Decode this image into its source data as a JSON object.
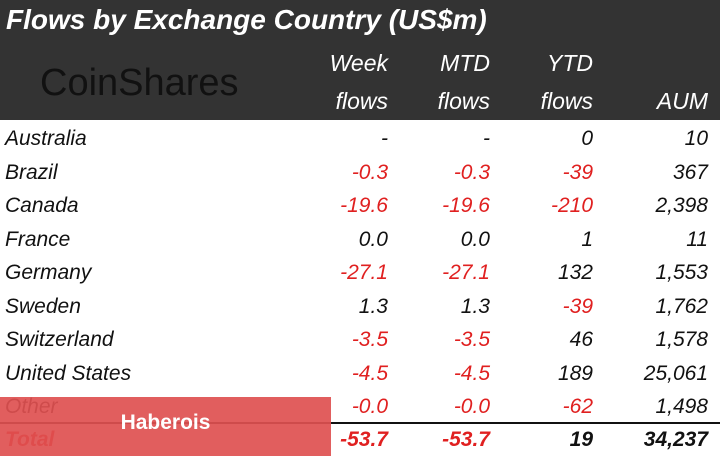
{
  "title": "Flows by Exchange Country (US$m)",
  "logo": "CoinShares",
  "table": {
    "header": [
      [
        "Week",
        "flows"
      ],
      [
        "MTD",
        "flows"
      ],
      [
        "YTD",
        "flows"
      ],
      [
        "",
        "AUM"
      ]
    ],
    "rows": [
      [
        "Australia",
        "-",
        "-",
        "0",
        "10"
      ],
      [
        "Brazil",
        "-0.3",
        "-0.3",
        "-39",
        "367"
      ],
      [
        "Canada",
        "-19.6",
        "-19.6",
        "-210",
        "2,398"
      ],
      [
        "France",
        "0.0",
        "0.0",
        "1",
        "11"
      ],
      [
        "Germany",
        "-27.1",
        "-27.1",
        "132",
        "1,553"
      ],
      [
        "Sweden",
        "1.3",
        "1.3",
        "-39",
        "1,762"
      ],
      [
        "Switzerland",
        "-3.5",
        "-3.5",
        "46",
        "1,578"
      ],
      [
        "United States",
        "-4.5",
        "-4.5",
        "189",
        "25,061"
      ],
      [
        "Other",
        "-0.0",
        "-0.0",
        "-62",
        "1,498"
      ]
    ],
    "total": [
      "Total",
      "-53.7",
      "-53.7",
      "19",
      "34,237"
    ]
  },
  "overlay": "Haberois"
}
